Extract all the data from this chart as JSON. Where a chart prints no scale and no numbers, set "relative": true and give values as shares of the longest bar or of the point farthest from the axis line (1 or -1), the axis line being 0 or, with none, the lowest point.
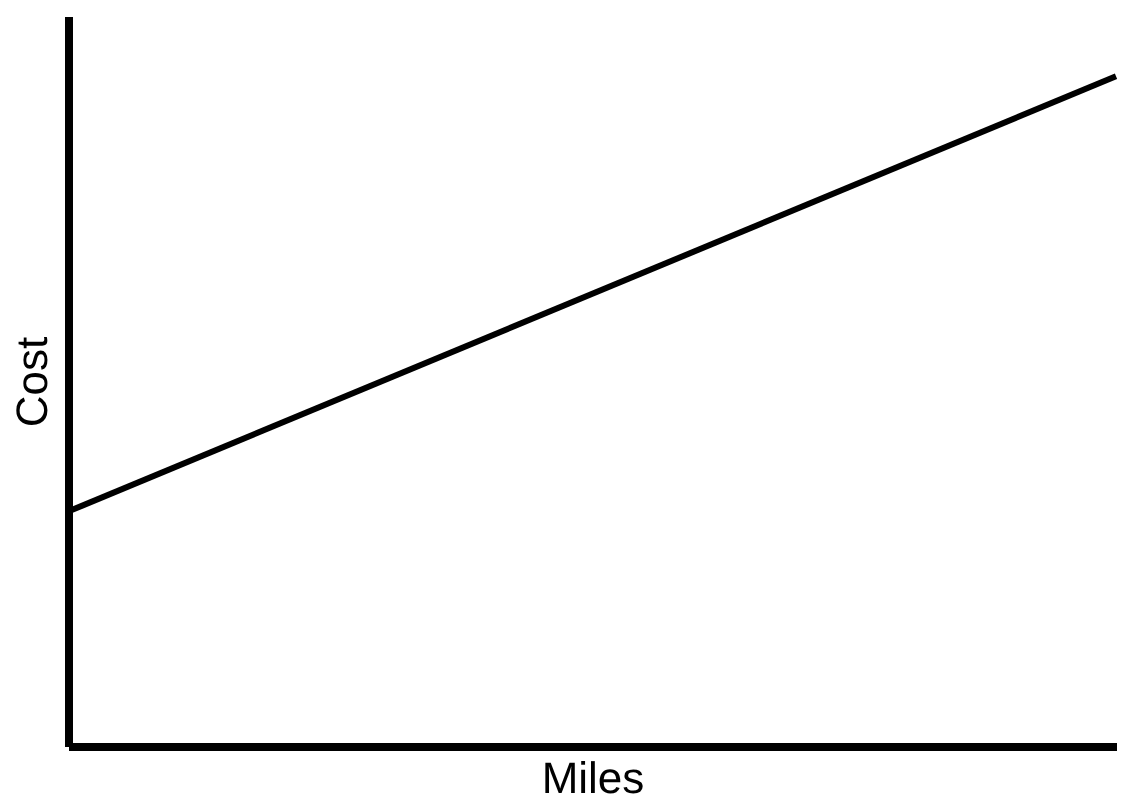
{
  "chart_data": {
    "type": "line",
    "relative": true,
    "xlabel": "Miles",
    "ylabel": "Cost",
    "categories": [
      null,
      null
    ],
    "series": [
      {
        "color": "#000000",
        "values": [
          0.35,
          1
        ]
      }
    ],
    "grid": false,
    "legend": false,
    "tick_labels": false,
    "marker": "none",
    "line_style": "solid"
  }
}
